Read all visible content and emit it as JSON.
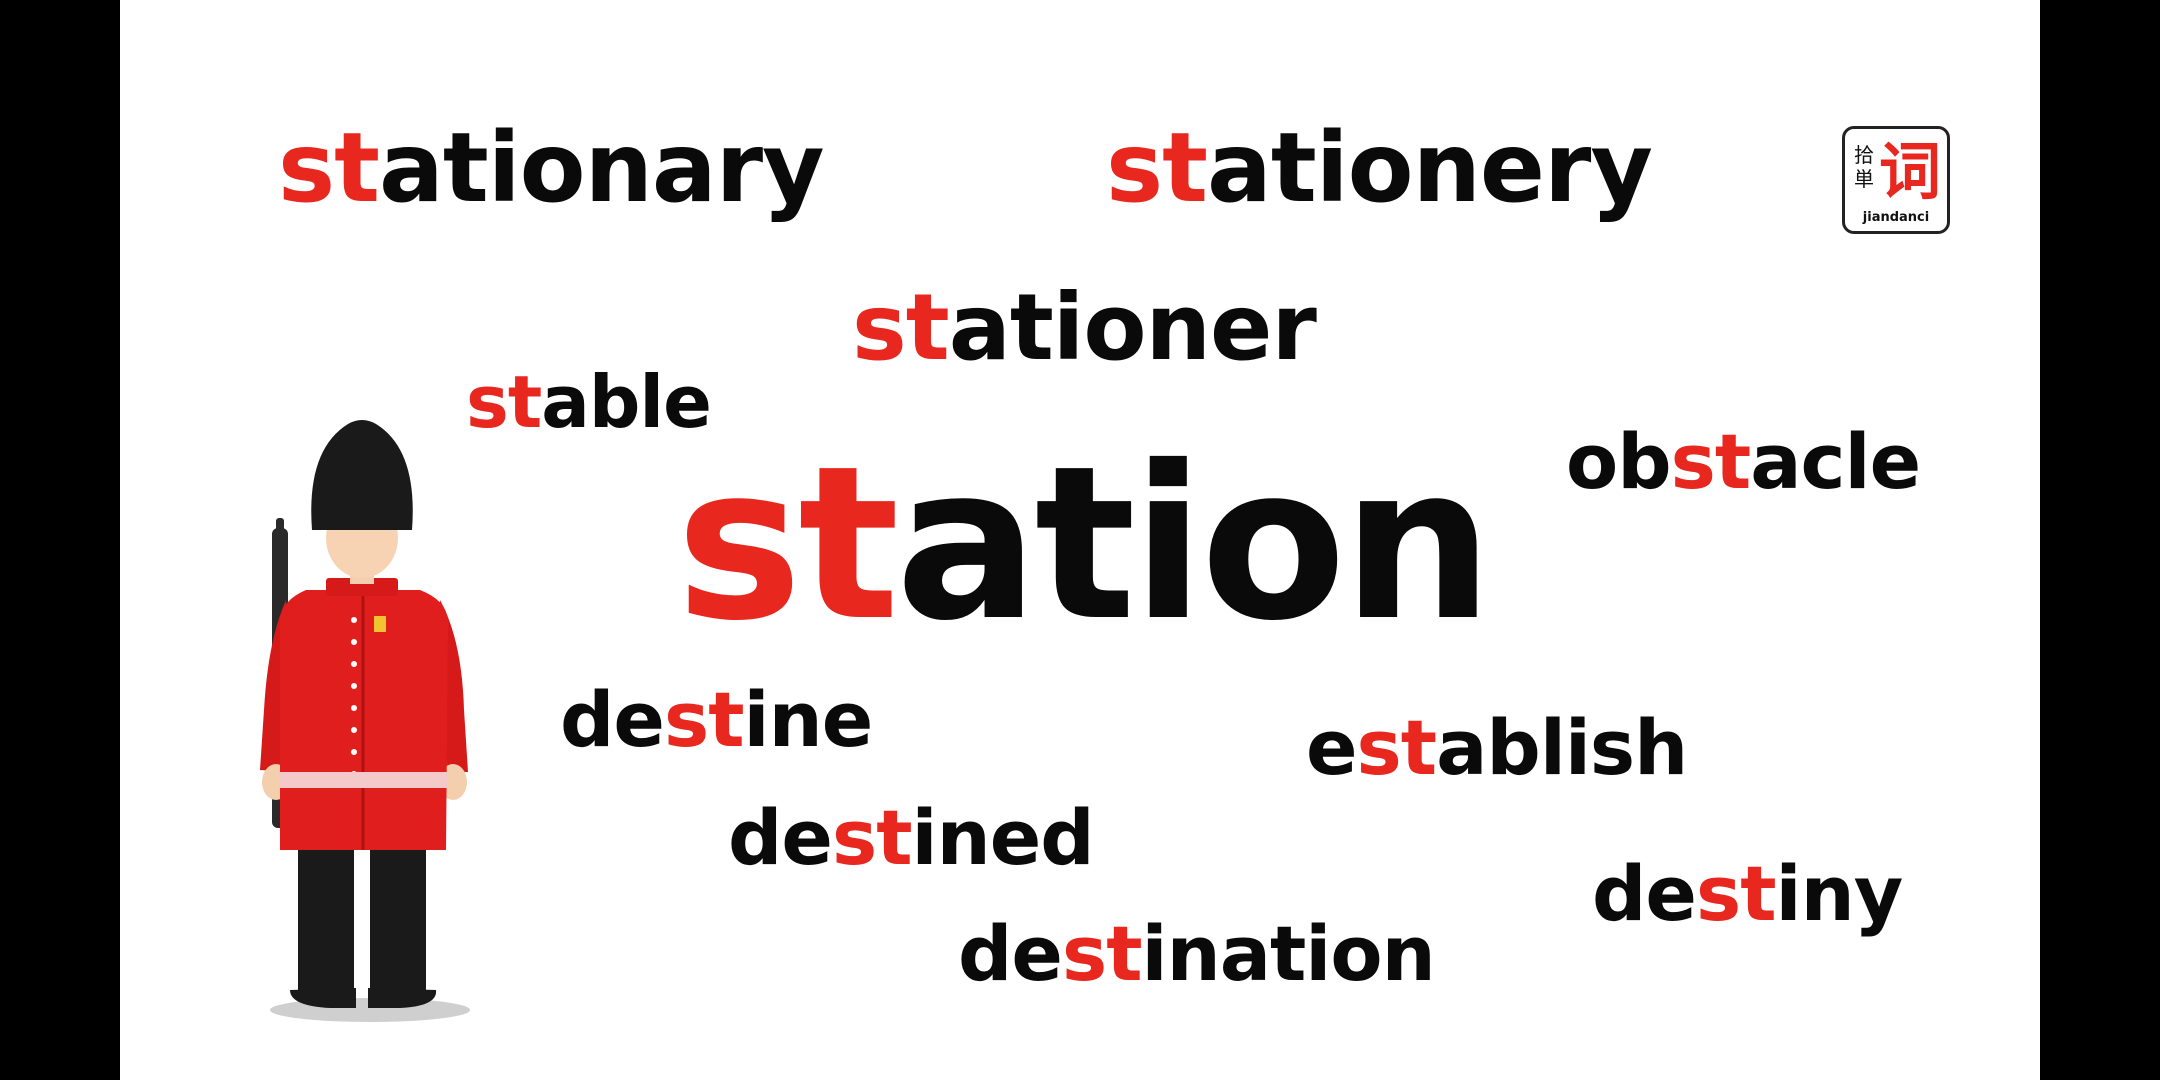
{
  "logo": {
    "cn_small": "拾単",
    "cn_big": "词",
    "roman": "jiandanci"
  },
  "words": {
    "stationary": {
      "hl": "st",
      "rest": "ationary"
    },
    "stationery": {
      "hl": "st",
      "rest": "ationery"
    },
    "stationer": {
      "hl": "st",
      "rest": "ationer"
    },
    "stable": {
      "hl": "st",
      "rest": "able"
    },
    "station": {
      "hl": "st",
      "rest": "ation"
    },
    "obstacle": {
      "pre": "ob",
      "hl": "st",
      "rest": "acle"
    },
    "destine": {
      "pre": "de",
      "hl": "st",
      "rest": "ine"
    },
    "establish": {
      "pre": "e",
      "hl": "st",
      "rest": "ablish"
    },
    "destined": {
      "pre": "de",
      "hl": "st",
      "rest": "ined"
    },
    "destiny": {
      "pre": "de",
      "hl": "st",
      "rest": "iny"
    },
    "destination": {
      "pre": "de",
      "hl": "st",
      "rest": "ination"
    }
  },
  "colors": {
    "highlight": "#e8271f",
    "text": "#0a0a0a",
    "background": "#ffffff",
    "letterbox": "#000000",
    "uniform": "#e01e1e",
    "hat": "#1a1a1a",
    "skin": "#f3cfae"
  },
  "illustration": {
    "icon": "royal-guard-soldier-icon"
  }
}
